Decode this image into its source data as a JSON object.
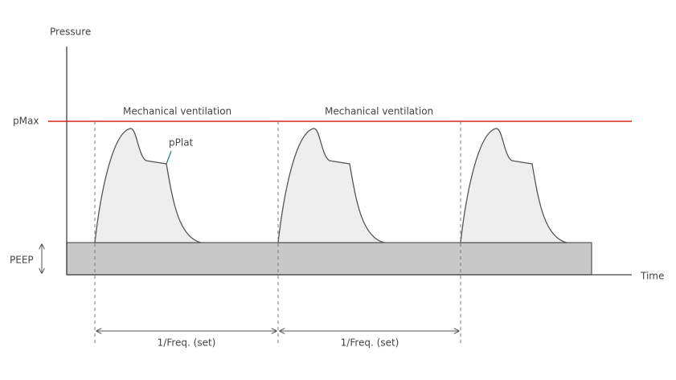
{
  "axes": {
    "y_label": "Pressure",
    "x_label": "Time"
  },
  "levels": {
    "pmax": "pMax",
    "peep": "PEEP"
  },
  "annotations": {
    "pplat": "pPlat",
    "breaths": [
      "Mechanical ventilation",
      "Mechanical ventilation"
    ],
    "intervals": [
      "1/Freq. (set)",
      "1/Freq. (set)"
    ]
  }
}
